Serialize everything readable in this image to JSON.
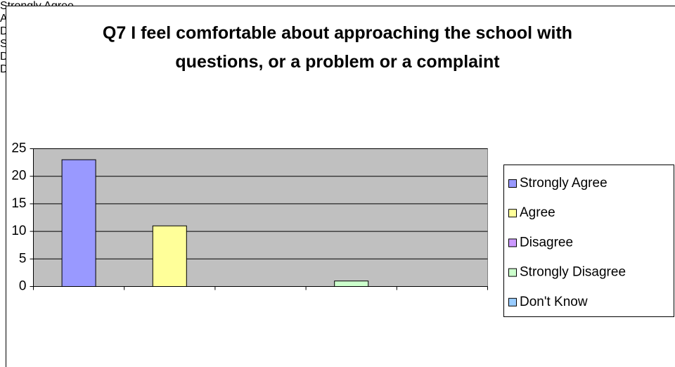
{
  "chart_data": {
    "type": "bar",
    "title": "Q7 I feel comfortable about approaching the school with questions, or a problem or a complaint",
    "categories": [
      "Strongly Agree",
      "Agree",
      "Disagree",
      "Strongly Disagree",
      "Don't Know"
    ],
    "values": [
      23,
      11,
      0,
      1,
      0
    ],
    "colors": [
      "#9999ff",
      "#ffff99",
      "#cc99ff",
      "#ccffcc",
      "#99ccff"
    ],
    "ylim": [
      0,
      25
    ],
    "yticks": [
      0,
      5,
      10,
      15,
      20,
      25
    ],
    "grid": true,
    "legend": "right"
  }
}
